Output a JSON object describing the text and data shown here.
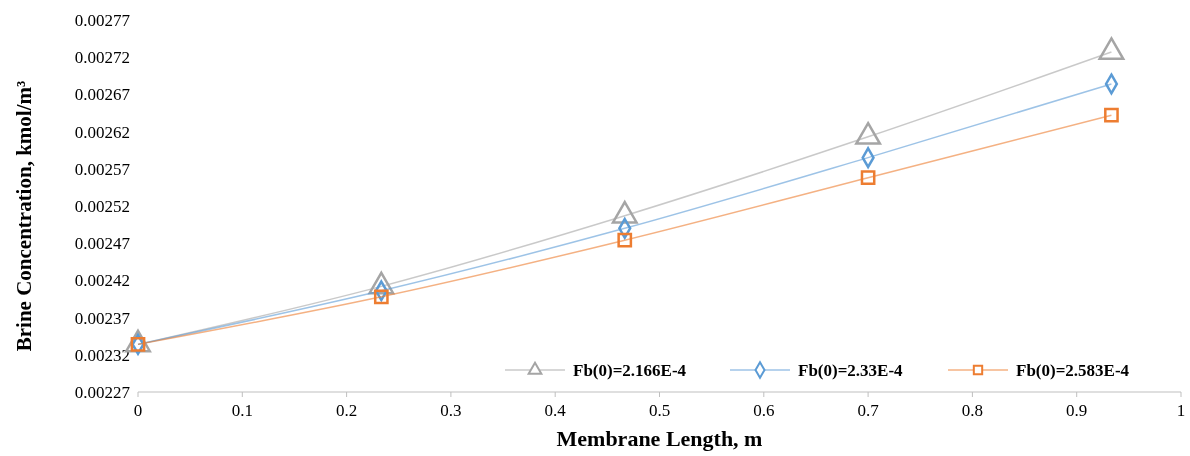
{
  "chart_data": {
    "type": "line",
    "xlabel": "Membrane Length, m",
    "ylabel": "Brine Concentration, kmol/m³",
    "x": [
      0,
      0.2333,
      0.4667,
      0.7,
      0.9333
    ],
    "xlim": [
      0,
      1
    ],
    "xticks": [
      0,
      0.1,
      0.2,
      0.3,
      0.4,
      0.5,
      0.6,
      0.7,
      0.8,
      0.9,
      1
    ],
    "ylim": [
      0.00227,
      0.00277
    ],
    "yticks": [
      0.00227,
      0.00232,
      0.00237,
      0.00242,
      0.00247,
      0.00252,
      0.00257,
      0.00262,
      0.00267,
      0.00272,
      0.00277
    ],
    "grid": false,
    "legend": "bottom right",
    "series": [
      {
        "name": "Fb(0)=2.166E-4",
        "color": "#a5a5a5",
        "marker": "triangle",
        "values": [
          0.002334,
          0.002412,
          0.002507,
          0.002613,
          0.002727
        ]
      },
      {
        "name": "Fb(0)=2.33E-4",
        "color": "#5b9bd5",
        "marker": "diamond",
        "values": [
          0.002334,
          0.002406,
          0.00249,
          0.002585,
          0.002684
        ]
      },
      {
        "name": "Fb(0)=2.583E-4",
        "color": "#ed7d31",
        "marker": "square",
        "values": [
          0.002334,
          0.002398,
          0.002474,
          0.002558,
          0.002642
        ]
      }
    ]
  }
}
